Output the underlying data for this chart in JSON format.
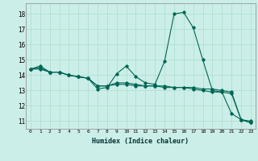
{
  "xlabel": "Humidex (Indice chaleur)",
  "ylabel": "",
  "background_color": "#cceee8",
  "grid_color": "#aaddcc",
  "line_color": "#006655",
  "xlim": [
    -0.5,
    23.5
  ],
  "ylim": [
    10.5,
    18.7
  ],
  "yticks": [
    11,
    12,
    13,
    14,
    15,
    16,
    17,
    18
  ],
  "xticks": [
    0,
    1,
    2,
    3,
    4,
    5,
    6,
    7,
    8,
    9,
    10,
    11,
    12,
    13,
    14,
    15,
    16,
    17,
    18,
    19,
    20,
    21,
    22,
    23
  ],
  "series": [
    [
      14.4,
      14.6,
      14.2,
      14.2,
      14.0,
      13.9,
      13.8,
      13.1,
      13.2,
      14.1,
      14.6,
      13.9,
      13.5,
      13.4,
      14.9,
      18.0,
      18.1,
      17.1,
      15.0,
      13.0,
      12.9,
      11.5,
      11.1,
      10.9
    ],
    [
      14.4,
      14.5,
      14.2,
      14.2,
      14.0,
      13.9,
      13.8,
      13.3,
      13.3,
      13.5,
      13.5,
      13.4,
      13.3,
      13.3,
      13.3,
      13.2,
      13.2,
      13.1,
      13.0,
      12.9,
      12.9,
      12.8,
      11.1,
      11.0
    ],
    [
      14.4,
      14.4,
      14.2,
      14.2,
      14.0,
      13.9,
      13.8,
      13.3,
      13.3,
      13.4,
      13.4,
      13.3,
      13.3,
      13.3,
      13.2,
      13.2,
      13.2,
      13.2,
      13.1,
      13.1,
      13.0,
      12.9,
      11.1,
      10.9
    ]
  ]
}
